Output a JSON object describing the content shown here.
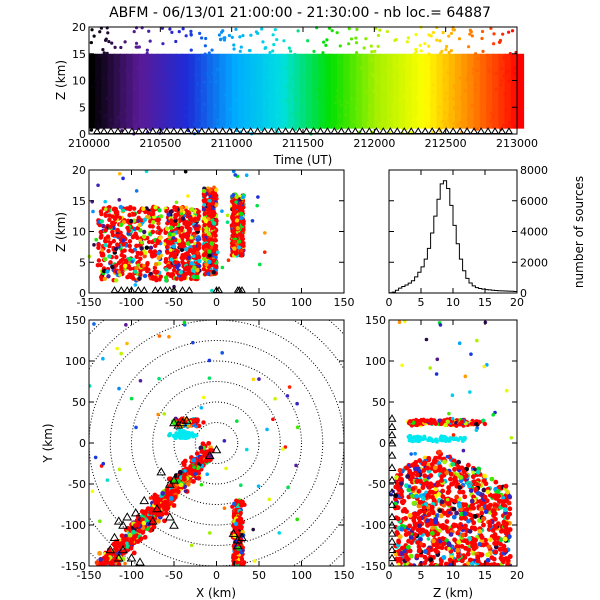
{
  "title": "ABFM - 06/13/01 21:00:00 - 21:30:00 - nb loc.=  64887",
  "chart_data": [
    {
      "id": "time-height",
      "type": "scatter",
      "title": "ABFM - 06/13/01 21:00:00 - 21:30:00 - nb loc.=  64887",
      "xlabel": "Time (UT)",
      "ylabel": "Z (km)",
      "xlim": [
        210000,
        213000
      ],
      "ylim": [
        0,
        20
      ],
      "xticks": [
        "210000",
        "210500",
        "211000",
        "211500",
        "212000",
        "212500",
        "213000"
      ],
      "yticks": [
        "0",
        "5",
        "10",
        "15",
        "20"
      ],
      "color_by": "time",
      "colormap": [
        "#000000",
        "#5a1a96",
        "#1e2bd8",
        "#00aaff",
        "#00e0e0",
        "#00e000",
        "#a8f000",
        "#ffff00",
        "#ff8000",
        "#ff0000"
      ],
      "density_band_z": [
        1,
        15
      ],
      "stations_z": 0
    },
    {
      "id": "x-z",
      "type": "scatter",
      "xlabel": "",
      "ylabel": "Z (km)",
      "xlim": [
        -150,
        150
      ],
      "ylim": [
        0,
        20
      ],
      "xticks": [
        "-150",
        "-100",
        "-50",
        "0",
        "50",
        "100",
        "150"
      ],
      "yticks": [
        "0",
        "5",
        "10",
        "15",
        "20"
      ],
      "clusters": [
        {
          "x": [
            -140,
            -65
          ],
          "z": [
            2,
            14
          ]
        },
        {
          "x": [
            -60,
            -20
          ],
          "z": [
            2,
            14
          ]
        },
        {
          "x": [
            -15,
            0
          ],
          "z": [
            3,
            17
          ]
        },
        {
          "x": [
            18,
            32
          ],
          "z": [
            6,
            16
          ]
        }
      ],
      "station_x": [
        -120,
        -112,
        -105,
        -100,
        -92,
        -85,
        -72,
        -66,
        -60,
        -55,
        -50,
        -40,
        -32,
        0,
        3,
        25,
        27,
        30
      ]
    },
    {
      "id": "histogram",
      "type": "bar",
      "xlabel": "",
      "ylabel": "number of sources",
      "xlim": [
        0,
        20
      ],
      "ylim": [
        0,
        8000
      ],
      "xticks": [
        "0",
        "5",
        "10",
        "15",
        "20"
      ],
      "yticks": [
        "0",
        "2000",
        "4000",
        "6000",
        "8000"
      ],
      "bin_edges": [
        0,
        0.5,
        1,
        1.5,
        2,
        2.5,
        3,
        3.5,
        4,
        4.5,
        5,
        5.5,
        6,
        6.5,
        7,
        7.5,
        8,
        8.5,
        9,
        9.5,
        10,
        10.5,
        11,
        11.5,
        12,
        12.5,
        13,
        13.5,
        14,
        14.5,
        15,
        15.5,
        16,
        16.5,
        17,
        17.5,
        18,
        18.5,
        19,
        19.5,
        20
      ],
      "values": [
        20,
        60,
        180,
        320,
        420,
        520,
        640,
        800,
        1050,
        1350,
        1700,
        2200,
        2900,
        3900,
        5000,
        6100,
        7100,
        7300,
        6800,
        5700,
        4400,
        3200,
        2200,
        1450,
        950,
        650,
        460,
        350,
        290,
        250,
        220,
        200,
        180,
        160,
        150,
        140,
        130,
        120,
        110,
        100
      ]
    },
    {
      "id": "x-y",
      "type": "scatter",
      "xlabel": "X (km)",
      "ylabel": "Y (km)",
      "xlim": [
        -150,
        150
      ],
      "ylim": [
        -150,
        150
      ],
      "xticks": [
        "-150",
        "-100",
        "-50",
        "0",
        "50",
        "100",
        "150"
      ],
      "yticks": [
        "-150",
        "-100",
        "-50",
        "0",
        "50",
        "100",
        "150"
      ],
      "range_rings_km": [
        25,
        50,
        75,
        100,
        125,
        150,
        175,
        200
      ],
      "stations": [
        [
          -50,
          25
        ],
        [
          -45,
          22
        ],
        [
          -40,
          25
        ],
        [
          -35,
          28
        ],
        [
          -65,
          -35
        ],
        [
          -55,
          -50
        ],
        [
          -50,
          -45
        ],
        [
          -8,
          -15
        ],
        [
          0,
          -8
        ],
        [
          -85,
          -70
        ],
        [
          -95,
          -85
        ],
        [
          -105,
          -90
        ],
        [
          -115,
          -95
        ],
        [
          -110,
          -100
        ],
        [
          -70,
          -80
        ],
        [
          -75,
          -95
        ],
        [
          -55,
          -90
        ],
        [
          -50,
          -100
        ],
        [
          -120,
          -115
        ],
        [
          -125,
          -130
        ],
        [
          -110,
          -130
        ],
        [
          -115,
          -140
        ],
        [
          -100,
          -140
        ],
        [
          -90,
          -145
        ],
        [
          20,
          -110
        ],
        [
          25,
          -118
        ],
        [
          30,
          -115
        ],
        [
          25,
          -125
        ]
      ]
    },
    {
      "id": "z-y",
      "type": "scatter",
      "xlabel": "Z (km)",
      "ylabel": "",
      "xlim": [
        0,
        20
      ],
      "ylim": [
        -150,
        150
      ],
      "xticks": [
        "0",
        "5",
        "10",
        "15",
        "20"
      ],
      "yticks": [
        "-150",
        "-100",
        "-50",
        "0",
        "50",
        "100",
        "150"
      ],
      "station_y": [
        30,
        20,
        10,
        0,
        -15,
        -30,
        -45,
        -60,
        -75,
        -90,
        -100,
        -110,
        -120,
        -130,
        -140,
        -150
      ]
    }
  ]
}
